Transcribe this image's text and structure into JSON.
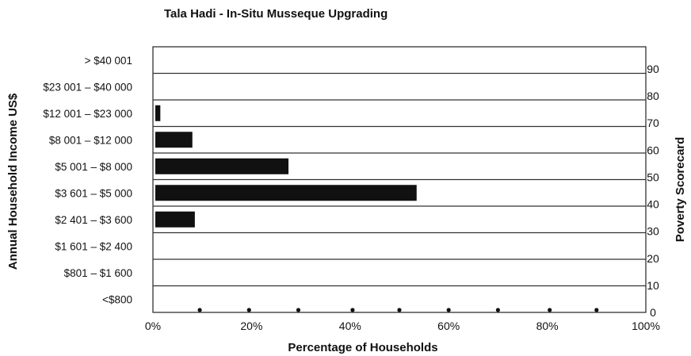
{
  "chart_data": {
    "type": "bar",
    "orientation": "horizontal",
    "title": "Tala Hadi - In-Situ Musseque Upgrading",
    "xlabel": "Percentage of Households",
    "ylabel": "Annual Household Income US$",
    "y2label": "Poverty Scorecard",
    "categories": [
      "> $40 001",
      "$23 001 – $40 000",
      "$12 001 – $23 000",
      "$8 001 – $12 000",
      "$5 001 – $8 000",
      "$3 601 – $5 000",
      "$2 401 – $3 600",
      "$1 601 – $2 400",
      "$801 – $1 600",
      "<$800"
    ],
    "values": [
      0,
      0,
      1.5,
      8,
      27.5,
      53.5,
      8.5,
      0,
      0,
      0
    ],
    "xlim": [
      0,
      100
    ],
    "x_ticks": [
      "0%",
      "20%",
      "40%",
      "60%",
      "80%",
      "100%"
    ],
    "y2lim": [
      0,
      90
    ],
    "y2_ticks": [
      "0",
      "10",
      "20",
      "30",
      "40",
      "50",
      "60",
      "70",
      "80",
      "90"
    ],
    "scorecard_dots_x": [
      9.5,
      19.5,
      29.5,
      40.5,
      50,
      60,
      70,
      80.5,
      90
    ],
    "grid": "horizontal",
    "bar_color": "#111111"
  }
}
